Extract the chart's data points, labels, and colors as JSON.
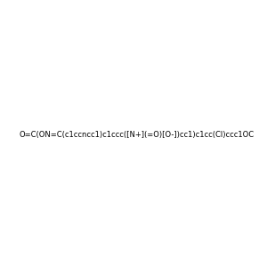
{
  "smiles": "O=C(ON=C(c1ccncc1)c1ccc([N+](=O)[O-])cc1)c1cc(Cl)ccc1OC",
  "image_size": 300,
  "background_color": "#e8e8e8",
  "atom_color_scheme": "default"
}
